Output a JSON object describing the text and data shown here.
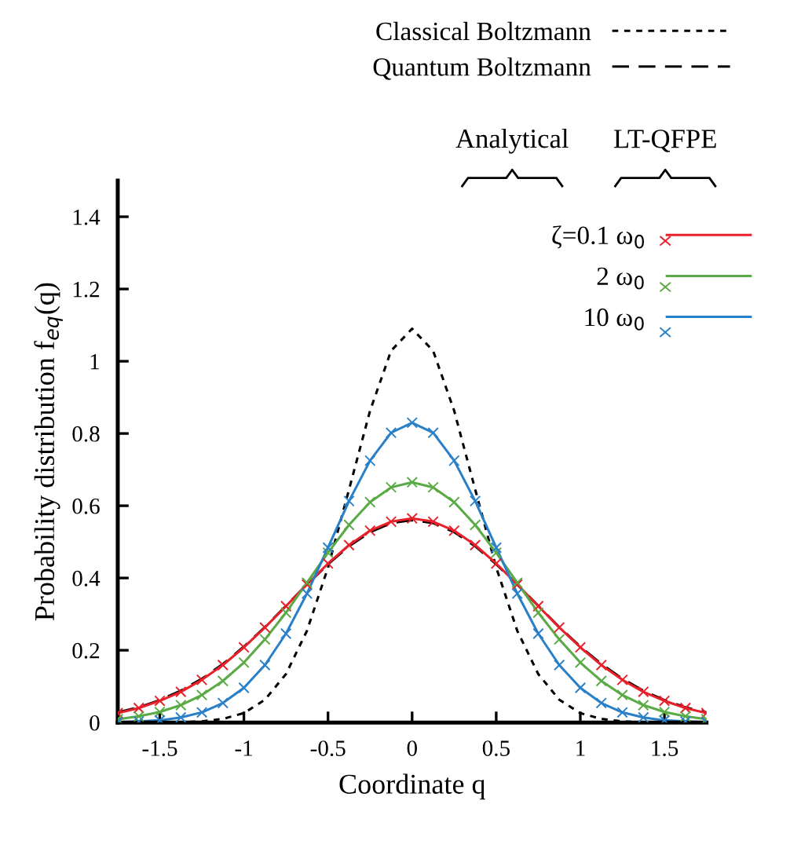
{
  "chart_data": {
    "type": "line",
    "xlabel": "Coordinate q",
    "ylabel": "Probability distribution f$_{eq}$(q)",
    "x": [
      -1.75,
      -1.625,
      -1.5,
      -1.375,
      -1.25,
      -1.125,
      -1.0,
      -0.875,
      -0.75,
      -0.625,
      -0.5,
      -0.375,
      -0.25,
      -0.125,
      0,
      0.125,
      0.25,
      0.375,
      0.5,
      0.625,
      0.75,
      0.875,
      1.0,
      1.125,
      1.25,
      1.375,
      1.5,
      1.625,
      1.75
    ],
    "series": [
      {
        "name": "Classical Boltzmann",
        "color": "#000000",
        "line_style": "dotted",
        "values": [
          0,
          0,
          0,
          0.001,
          0.003,
          0.01,
          0.026,
          0.063,
          0.134,
          0.254,
          0.429,
          0.645,
          0.863,
          1.029,
          1.09,
          1.029,
          0.863,
          0.645,
          0.429,
          0.254,
          0.134,
          0.063,
          0.026,
          0.01,
          0.003,
          0.001,
          0,
          0,
          0
        ]
      },
      {
        "name": "Quantum Boltzmann",
        "color": "#000000",
        "line_style": "dashed",
        "values": [
          0.028,
          0.042,
          0.062,
          0.088,
          0.121,
          0.162,
          0.21,
          0.264,
          0.323,
          0.382,
          0.438,
          0.488,
          0.527,
          0.552,
          0.56,
          0.552,
          0.527,
          0.488,
          0.438,
          0.382,
          0.323,
          0.264,
          0.21,
          0.162,
          0.121,
          0.088,
          0.062,
          0.042,
          0.028
        ]
      },
      {
        "name": "ζ=0.1 ω$_{0}$",
        "color": "#e8202a",
        "line_style": "solid",
        "values": [
          0.026,
          0.04,
          0.06,
          0.085,
          0.118,
          0.159,
          0.208,
          0.263,
          0.322,
          0.382,
          0.44,
          0.491,
          0.531,
          0.556,
          0.565,
          0.556,
          0.531,
          0.491,
          0.44,
          0.382,
          0.322,
          0.263,
          0.208,
          0.159,
          0.118,
          0.085,
          0.06,
          0.04,
          0.026
        ]
      },
      {
        "name": "2 ω$_{0}$",
        "color": "#5aaa46",
        "line_style": "solid",
        "values": [
          0.009,
          0.017,
          0.029,
          0.048,
          0.076,
          0.115,
          0.166,
          0.23,
          0.304,
          0.387,
          0.47,
          0.547,
          0.61,
          0.651,
          0.665,
          0.651,
          0.61,
          0.547,
          0.47,
          0.387,
          0.304,
          0.23,
          0.166,
          0.115,
          0.076,
          0.048,
          0.029,
          0.017,
          0.009
        ]
      },
      {
        "name": "10 ω$_{0}$",
        "color": "#2a80c8",
        "line_style": "solid",
        "values": [
          0.001,
          0.003,
          0.006,
          0.014,
          0.028,
          0.054,
          0.096,
          0.159,
          0.246,
          0.357,
          0.484,
          0.613,
          0.725,
          0.802,
          0.83,
          0.802,
          0.725,
          0.613,
          0.484,
          0.357,
          0.246,
          0.159,
          0.096,
          0.054,
          0.028,
          0.014,
          0.006,
          0.003,
          0.001
        ]
      },
      {
        "type": "scatter",
        "marker": "cross",
        "color": "#e8202a",
        "values": [
          0.026,
          0.04,
          0.06,
          0.085,
          0.118,
          0.159,
          0.208,
          0.263,
          0.322,
          0.382,
          0.44,
          0.491,
          0.531,
          0.556,
          0.565,
          0.556,
          0.531,
          0.491,
          0.44,
          0.382,
          0.322,
          0.263,
          0.208,
          0.159,
          0.118,
          0.085,
          0.06,
          0.04,
          0.026
        ]
      },
      {
        "type": "scatter",
        "marker": "cross",
        "color": "#5aaa46",
        "values": [
          0.009,
          0.017,
          0.029,
          0.048,
          0.076,
          0.115,
          0.166,
          0.23,
          0.304,
          0.387,
          0.47,
          0.547,
          0.61,
          0.651,
          0.665,
          0.651,
          0.61,
          0.547,
          0.47,
          0.387,
          0.304,
          0.23,
          0.166,
          0.115,
          0.076,
          0.048,
          0.029,
          0.017,
          0.009
        ]
      },
      {
        "type": "scatter",
        "marker": "cross",
        "color": "#2a80c8",
        "values": [
          0.001,
          0.003,
          0.006,
          0.014,
          0.028,
          0.054,
          0.096,
          0.159,
          0.246,
          0.357,
          0.484,
          0.613,
          0.725,
          0.802,
          0.83,
          0.802,
          0.725,
          0.613,
          0.484,
          0.357,
          0.246,
          0.159,
          0.096,
          0.054,
          0.028,
          0.014,
          0.006,
          0.003,
          0.001
        ]
      }
    ],
    "annotations": [
      "Analytical",
      "LT-QFPE"
    ],
    "xlim": [
      -1.75,
      1.75
    ],
    "xticks": [
      -1.5,
      -1,
      -0.5,
      0,
      0.5,
      1,
      1.5
    ],
    "ylim": [
      0,
      1.5
    ],
    "yticks": [
      0,
      0.2,
      0.4,
      0.6,
      0.8,
      1,
      1.2,
      1.4
    ],
    "grid": false,
    "legend": "top right"
  }
}
